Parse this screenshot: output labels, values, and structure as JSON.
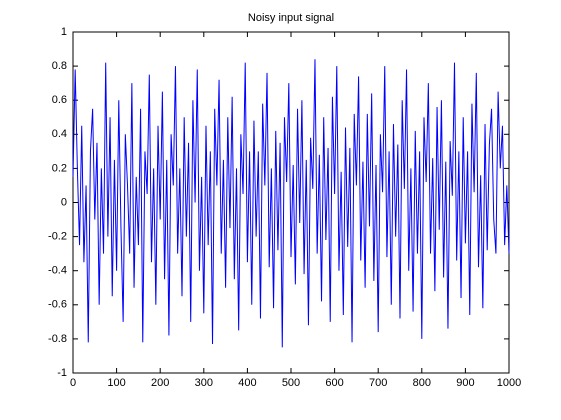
{
  "chart_data": {
    "type": "line",
    "title": "Noisy input signal",
    "x": [
      0,
      5,
      10,
      15,
      20,
      25,
      30,
      35,
      40,
      45,
      50,
      55,
      60,
      65,
      70,
      75,
      80,
      85,
      90,
      95,
      100,
      105,
      110,
      115,
      120,
      125,
      130,
      135,
      140,
      145,
      150,
      155,
      160,
      165,
      170,
      175,
      180,
      185,
      190,
      195,
      200,
      205,
      210,
      215,
      220,
      225,
      230,
      235,
      240,
      245,
      250,
      255,
      260,
      265,
      270,
      275,
      280,
      285,
      290,
      295,
      300,
      305,
      310,
      315,
      320,
      325,
      330,
      335,
      340,
      345,
      350,
      355,
      360,
      365,
      370,
      375,
      380,
      385,
      390,
      395,
      400,
      405,
      410,
      415,
      420,
      425,
      430,
      435,
      440,
      445,
      450,
      455,
      460,
      465,
      470,
      475,
      480,
      485,
      490,
      495,
      500,
      505,
      510,
      515,
      520,
      525,
      530,
      535,
      540,
      545,
      550,
      555,
      560,
      565,
      570,
      575,
      580,
      585,
      590,
      595,
      600,
      605,
      610,
      615,
      620,
      625,
      630,
      635,
      640,
      645,
      650,
      655,
      660,
      665,
      670,
      675,
      680,
      685,
      690,
      695,
      700,
      705,
      710,
      715,
      720,
      725,
      730,
      735,
      740,
      745,
      750,
      755,
      760,
      765,
      770,
      775,
      780,
      785,
      790,
      795,
      800,
      805,
      810,
      815,
      820,
      825,
      830,
      835,
      840,
      845,
      850,
      855,
      860,
      865,
      870,
      875,
      880,
      885,
      890,
      895,
      900,
      905,
      910,
      915,
      920,
      925,
      930,
      935,
      940,
      945,
      950,
      955,
      960,
      965,
      970,
      975,
      980,
      985,
      990,
      995,
      1000
    ],
    "series": [
      {
        "color": "#0000ff",
        "values": [
          0.15,
          0.78,
          0.2,
          -0.25,
          0.45,
          -0.35,
          0.1,
          -0.82,
          0.3,
          0.55,
          -0.1,
          0.35,
          -0.6,
          0.2,
          -0.3,
          0.82,
          -0.2,
          0.5,
          -0.55,
          0.25,
          -0.4,
          0.6,
          -0.15,
          -0.7,
          0.4,
          0.1,
          -0.3,
          0.7,
          -0.5,
          0.15,
          -0.25,
          0.55,
          -0.82,
          0.3,
          0.05,
          0.75,
          -0.35,
          0.2,
          -0.6,
          0.45,
          -0.1,
          0.65,
          -0.45,
          0.25,
          -0.78,
          0.4,
          0.1,
          0.8,
          -0.3,
          0.2,
          -0.55,
          0.5,
          -0.2,
          0.35,
          -0.7,
          0.6,
          0.0,
          0.78,
          -0.4,
          0.15,
          -0.65,
          0.45,
          -0.25,
          0.3,
          -0.83,
          0.55,
          0.1,
          0.72,
          -0.3,
          0.25,
          -0.5,
          0.5,
          -0.15,
          0.62,
          -0.45,
          0.2,
          -0.75,
          0.4,
          0.05,
          0.82,
          -0.35,
          0.3,
          -0.6,
          0.48,
          -0.2,
          0.3,
          -0.68,
          0.58,
          0.1,
          0.76,
          -0.38,
          0.2,
          -0.62,
          0.42,
          -0.28,
          0.35,
          -0.85,
          0.5,
          0.12,
          0.7,
          -0.32,
          0.22,
          -0.48,
          0.55,
          -0.12,
          0.6,
          -0.42,
          0.25,
          -0.72,
          0.38,
          0.08,
          0.84,
          -0.3,
          0.28,
          -0.58,
          0.5,
          -0.22,
          0.32,
          -0.7,
          0.62,
          0.05,
          0.8,
          -0.4,
          0.18,
          -0.66,
          0.44,
          -0.26,
          0.32,
          -0.82,
          0.52,
          0.1,
          0.74,
          -0.34,
          0.24,
          -0.5,
          0.52,
          -0.14,
          0.64,
          -0.46,
          0.22,
          -0.76,
          0.4,
          0.06,
          0.8,
          -0.32,
          0.3,
          -0.6,
          0.46,
          -0.2,
          0.34,
          -0.68,
          0.6,
          0.08,
          0.78,
          -0.4,
          0.2,
          -0.64,
          0.42,
          -0.3,
          0.3,
          -0.8,
          0.5,
          0.12,
          0.7,
          -0.3,
          0.26,
          -0.52,
          0.56,
          -0.16,
          0.6,
          -0.44,
          0.24,
          -0.74,
          0.36,
          0.04,
          0.82,
          -0.34,
          0.3,
          -0.56,
          0.5,
          -0.24,
          0.3,
          -0.66,
          0.58,
          0.06,
          0.76,
          -0.38,
          0.16,
          -0.62,
          0.46,
          -0.28,
          0.34,
          0.55,
          -0.1,
          -0.3,
          0.65,
          0.2,
          0.45,
          -0.25,
          0.1,
          -0.3
        ]
      }
    ],
    "xlim": [
      0,
      1000
    ],
    "xticks": [
      0,
      100,
      200,
      300,
      400,
      500,
      600,
      700,
      800,
      900,
      1000
    ],
    "ylim": [
      -1,
      1
    ],
    "yticks": [
      -1,
      -0.8,
      -0.6,
      -0.4,
      -0.2,
      0,
      0.2,
      0.4,
      0.6,
      0.8,
      1
    ],
    "grid": false
  }
}
